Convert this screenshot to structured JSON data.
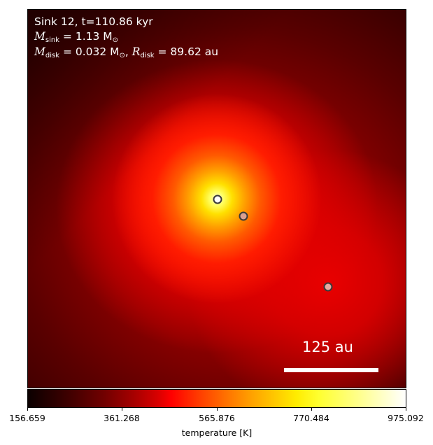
{
  "annotation": {
    "sink_line": "Sink 12, t=110.86 kyr",
    "msink_label": "M",
    "msink_sub": "sink",
    "msink_value": " = 1.13 M",
    "msink_sun": "⊙",
    "mdisk_label": "M",
    "mdisk_sub": "disk",
    "mdisk_value": " = 0.032 M",
    "mdisk_sun": "⊙",
    "rdisk_sep": ", ",
    "rdisk_label": "R",
    "rdisk_sub": "disk",
    "rdisk_value": " = 89.62 au"
  },
  "scale_bar": {
    "label": "125 au"
  },
  "sinks": [
    {
      "name": "sink-central",
      "fill": "#ffffff"
    },
    {
      "name": "sink-companion",
      "fill": "#d9a090"
    },
    {
      "name": "sink-outer",
      "fill": "#e8a8a0"
    }
  ],
  "colorbar": {
    "label": "temperature [K]",
    "colormap": "hot",
    "min": 156.659,
    "max": 975.092,
    "ticks": [
      "156.659",
      "361.268",
      "565.876",
      "770.484",
      "975.092"
    ]
  }
}
